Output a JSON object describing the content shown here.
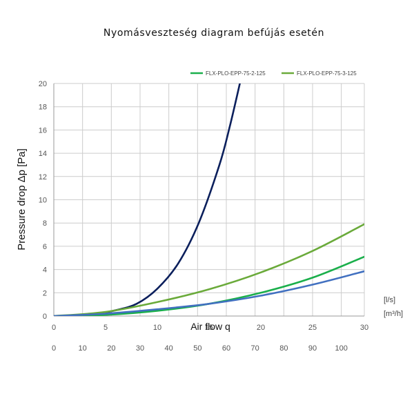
{
  "chart_data": {
    "type": "line",
    "title": "Nyomásveszteség diagram befújás esetén",
    "ylabel": "Pressure drop Δp [Pa]",
    "xlabel": "Air flow q",
    "ylim": [
      0,
      20
    ],
    "yticks": [
      "0",
      "2",
      "4",
      "6",
      "8",
      "10",
      "12",
      "14",
      "16",
      "18",
      "20"
    ],
    "x_units_primary": "[l/s]",
    "x_units_secondary": "[m³/h]",
    "xlim_ls": [
      0,
      30
    ],
    "xticks_ls": [
      "0",
      "5",
      "10",
      "15",
      "20",
      "25",
      "30"
    ],
    "xlim_m3h": [
      0,
      108
    ],
    "xticks_m3h": [
      "0",
      "10",
      "20",
      "30",
      "40",
      "50",
      "60",
      "70",
      "80",
      "90",
      "100"
    ],
    "grid": true,
    "legend_position": "top-right",
    "series": [
      {
        "name": "",
        "color": "#0b1f5c",
        "x": [
          0,
          2,
          4,
          6,
          8,
          10,
          12,
          14,
          16,
          17,
          18
        ],
        "y": [
          0,
          0.04,
          0.18,
          0.5,
          1.05,
          2.35,
          4.5,
          8.0,
          13.0,
          16.3,
          20.1
        ]
      },
      {
        "name": "FLX-PLO-EPP-75-2-125",
        "color": "#1aaf4b",
        "x": [
          0,
          5,
          10,
          15,
          20,
          25,
          30
        ],
        "y": [
          0,
          0.1,
          0.45,
          1.05,
          2.0,
          3.3,
          5.1
        ]
      },
      {
        "name": "FLX-PLO-EPP-75-3-125",
        "color": "#6aaa3a",
        "x": [
          0,
          5,
          10,
          15,
          20,
          25,
          30
        ],
        "y": [
          0,
          0.35,
          1.2,
          2.3,
          3.75,
          5.6,
          7.9
        ]
      },
      {
        "name": "",
        "color": "#4170c0",
        "x": [
          0,
          5,
          10,
          15,
          20,
          25,
          30
        ],
        "y": [
          0,
          0.2,
          0.58,
          1.05,
          1.75,
          2.7,
          3.85
        ]
      }
    ]
  }
}
